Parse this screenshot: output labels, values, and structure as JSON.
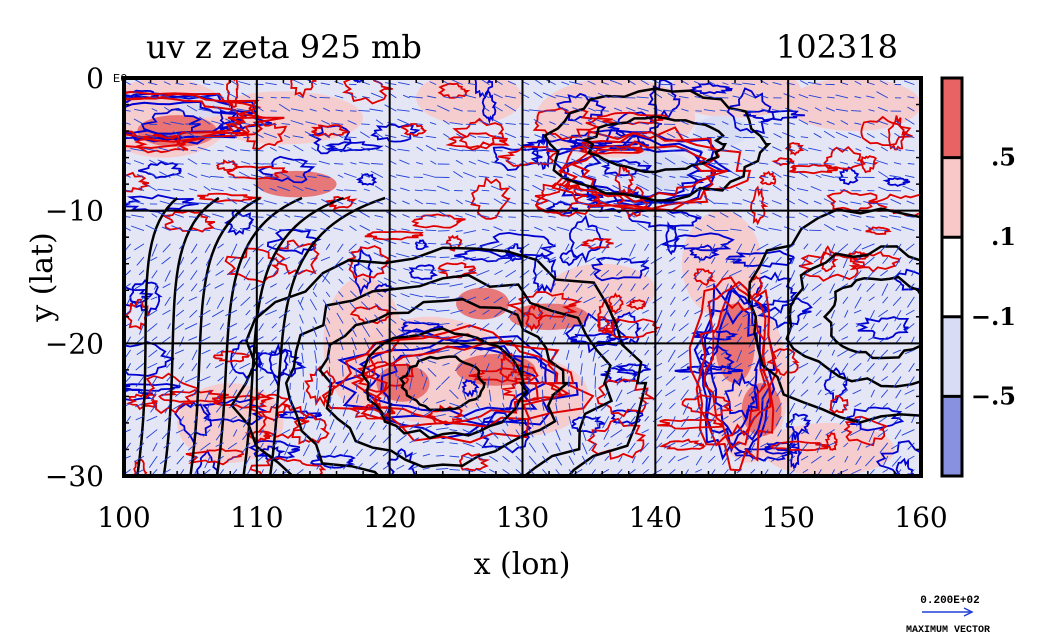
{
  "chart_data": {
    "type": "heatmap",
    "title_left": "uv z zeta 925 mb",
    "title_right": "102318",
    "xlabel": "x (lon)",
    "ylabel": "y (lat)",
    "xlim": [
      100,
      160
    ],
    "ylim": [
      -30,
      0
    ],
    "x_ticks": [
      "100",
      "110",
      "120",
      "130",
      "140",
      "150",
      "160"
    ],
    "y_ticks": [
      "0",
      "−10",
      "−20",
      "−30"
    ],
    "corner_label": "E0",
    "colorbar": {
      "tick_labels": [
        ".5",
        ".1",
        "−.1",
        "−.5"
      ],
      "levels": [
        0.5,
        0.1,
        -0.1,
        -0.5
      ],
      "colors": [
        "#e86464",
        "#f8c8c8",
        "#ffffff",
        "#d8dcf4",
        "#8890e0"
      ]
    },
    "vector_key": {
      "value_label": "0.200E+02",
      "caption": "MAXIMUM VECTOR"
    },
    "series_colors": {
      "positive_contour": "#e00000",
      "negative_contour": "#0000d0",
      "height_contour": "#000000",
      "vectors": "#2040d8"
    }
  }
}
